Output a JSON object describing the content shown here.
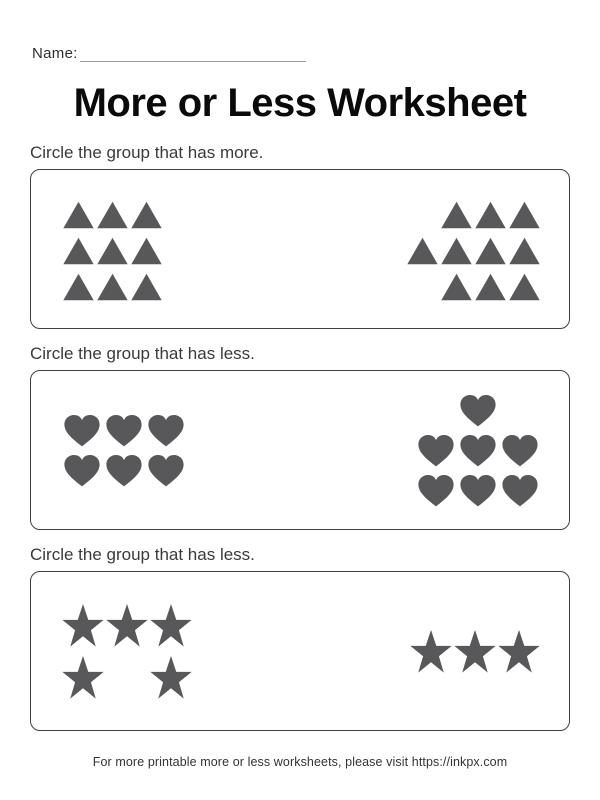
{
  "page": {
    "name_label": "Name:",
    "title": "More or Less Worksheet",
    "footer": "For more printable more or less worksheets, please visit https://inkpx.com"
  },
  "colors": {
    "shape_fill": "#58585a",
    "box_border": "#3f3f3f",
    "instruction_text": "#3a3a3a",
    "title_text": "#0a0a0a",
    "name_line": "#9a9a9a",
    "footer_text": "#333333",
    "background": "#ffffff"
  },
  "sections": [
    {
      "instruction": "Circle the group that has more.",
      "shape": "triangle",
      "left_count": 9,
      "left_grid": [
        [
          1,
          1,
          1
        ],
        [
          1,
          1,
          1
        ],
        [
          1,
          1,
          1
        ]
      ],
      "right_count": 10,
      "right_grid": [
        [
          0,
          1,
          1,
          1
        ],
        [
          1,
          1,
          1,
          1
        ],
        [
          0,
          1,
          1,
          1
        ]
      ]
    },
    {
      "instruction": "Circle the group that has less.",
      "shape": "heart",
      "left_count": 6,
      "left_grid": [
        [
          1,
          1,
          1
        ],
        [
          1,
          1,
          1
        ]
      ],
      "right_count": 7,
      "right_grid": [
        [
          0,
          1,
          0
        ],
        [
          1,
          1,
          1
        ],
        [
          1,
          1,
          1
        ]
      ]
    },
    {
      "instruction": "Circle the group that has less.",
      "shape": "star",
      "left_count": 5,
      "left_grid": [
        [
          1,
          1,
          1
        ],
        [
          1,
          0,
          1
        ]
      ],
      "right_count": 3,
      "right_grid": [
        [
          1,
          1,
          1
        ]
      ]
    }
  ]
}
